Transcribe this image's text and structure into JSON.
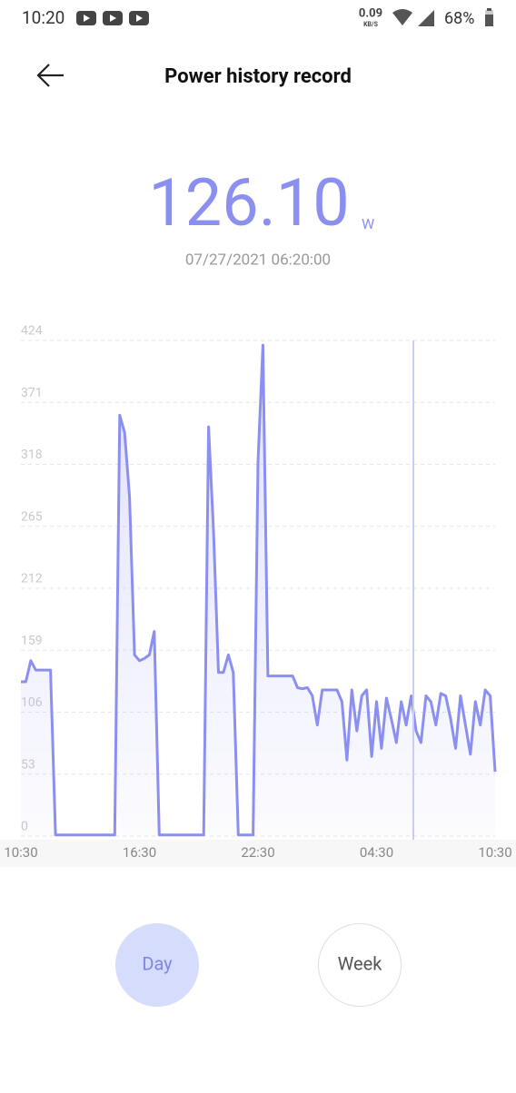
{
  "status_bar": {
    "time": "10:20",
    "speed": "0.09",
    "speed_unit": "KB/S",
    "battery": "68%"
  },
  "header": {
    "title": "Power history record"
  },
  "reading": {
    "value": "126.10",
    "unit": "W",
    "timestamp": "07/27/2021 06:20:00"
  },
  "chart_data": {
    "type": "line",
    "categories": [
      "10:30",
      null,
      null,
      null,
      null,
      null,
      null,
      null,
      null,
      null,
      null,
      null,
      null,
      null,
      null,
      null,
      null,
      null,
      null,
      null,
      null,
      null,
      null,
      null,
      "16:30",
      null,
      null,
      null,
      null,
      null,
      null,
      null,
      null,
      null,
      null,
      null,
      null,
      null,
      null,
      null,
      null,
      null,
      null,
      null,
      null,
      null,
      null,
      null,
      "22:30",
      null,
      null,
      null,
      null,
      null,
      null,
      null,
      null,
      null,
      null,
      null,
      null,
      null,
      null,
      null,
      null,
      null,
      null,
      null,
      null,
      null,
      null,
      null,
      "04:30",
      null,
      null,
      null,
      null,
      null,
      null,
      null,
      null,
      null,
      null,
      null,
      null,
      null,
      null,
      null,
      null,
      null,
      null,
      null,
      null,
      null,
      null,
      null,
      "10:30"
    ],
    "values": [
      132,
      132,
      150,
      142,
      142,
      142,
      142,
      1,
      1,
      1,
      1,
      1,
      1,
      1,
      1,
      1,
      1,
      1,
      1,
      1,
      360,
      345,
      290,
      155,
      150,
      152,
      155,
      175,
      1,
      1,
      1,
      1,
      1,
      1,
      1,
      1,
      1,
      1,
      350,
      260,
      140,
      140,
      155,
      140,
      1,
      1,
      1,
      1,
      320,
      420,
      137,
      137,
      137,
      137,
      137,
      137,
      127,
      126,
      127,
      120,
      95,
      125,
      125,
      125,
      125,
      115,
      65,
      125,
      90,
      120,
      125,
      68,
      115,
      75,
      118,
      100,
      80,
      115,
      95,
      120,
      90,
      80,
      120,
      115,
      95,
      122,
      120,
      100,
      75,
      120,
      95,
      70,
      115,
      95,
      125,
      120,
      55
    ],
    "color": "#8b8ff0",
    "ylim": [
      0,
      424
    ],
    "yticks": [
      0,
      53,
      106,
      159,
      212,
      265,
      318,
      371,
      424
    ],
    "grid": true
  },
  "buttons": {
    "day": "Day",
    "week": "Week"
  }
}
